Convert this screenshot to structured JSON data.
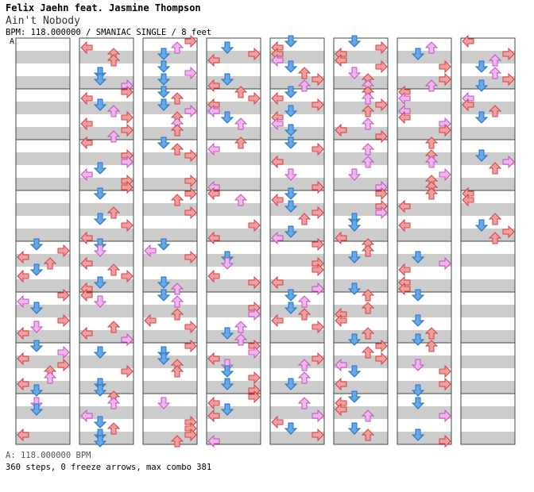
{
  "header": {
    "artist": "Felix Jaehn feat. Jasmine Thompson",
    "title": "Ain't Nobody",
    "meta": "BPM: 118.000000 / SMANIAC SINGLE / 8 feet",
    "bpm_marker": "A"
  },
  "footer": {
    "bpm_line": "A: 118.000000 BPM",
    "stats": "360 steps, 0 freeze arrows, max combo 381"
  },
  "legend": {
    "colors": {
      "left": "#f88080",
      "down": "#5aa8f0",
      "up": "#f08080",
      "right": "#f08080",
      "pink": "#f4a8f0",
      "stripe_light": "#ffffff",
      "stripe_dark": "#cccccc"
    }
  },
  "chart_data": {
    "type": "step-chart",
    "measures_per_column": 8,
    "columns": 8,
    "visible_measures": 64,
    "total_steps": 360,
    "freeze_arrows": 0,
    "max_combo": 381,
    "bpm": 118.0
  }
}
